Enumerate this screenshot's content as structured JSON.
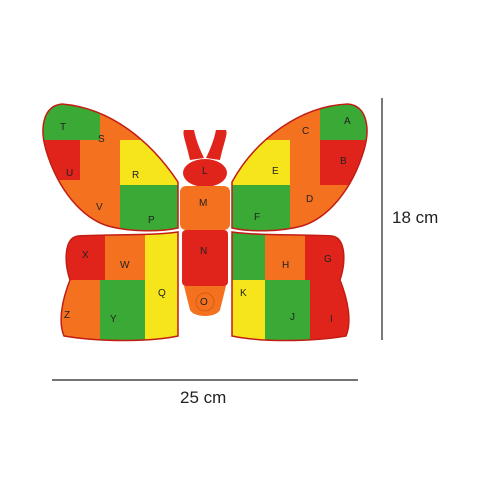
{
  "product": {
    "name": "",
    "letters_left_upper": [
      "T",
      "S",
      "U",
      "R",
      "V",
      "P"
    ],
    "letters_right_upper": [
      "A",
      "C",
      "B",
      "E",
      "D",
      "F"
    ],
    "letters_center": [
      "L",
      "M",
      "N",
      "O"
    ],
    "letters_left_lower": [
      "X",
      "W",
      "Z",
      "Y",
      "Q"
    ],
    "letters_right_lower": [
      "G",
      "H",
      "K",
      "I",
      "J"
    ]
  },
  "dimensions": {
    "height_label": "18 cm",
    "width_label": "25 cm"
  },
  "colors": {
    "red": "#e0241b",
    "orange": "#f4711f",
    "yellow": "#f6e51b",
    "green": "#3aa935",
    "letter": "#222222",
    "guide_line": "#222222"
  }
}
